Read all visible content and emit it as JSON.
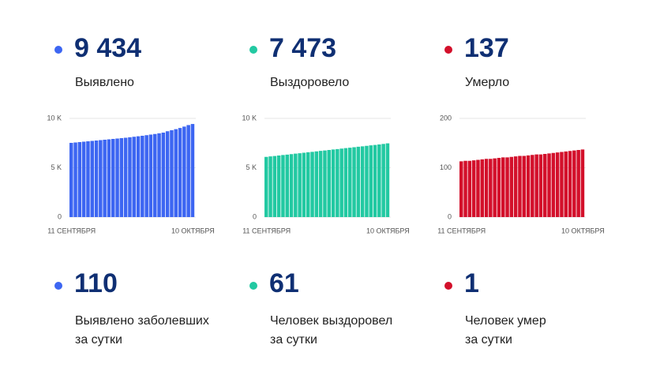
{
  "stats": [
    {
      "value": "9 434",
      "label": "Выявлено",
      "color": "#3d66f2"
    },
    {
      "value": "7 473",
      "label": "Выздоровело",
      "color": "#22c9a2"
    },
    {
      "value": "137",
      "label": "Умерло",
      "color": "#d3102b"
    }
  ],
  "daily": [
    {
      "value": "110",
      "lines": [
        "Выявлено заболевших",
        "за сутки"
      ],
      "color": "#3d66f2"
    },
    {
      "value": "61",
      "lines": [
        "Человек выздоровел",
        "за сутки"
      ],
      "color": "#22c9a2"
    },
    {
      "value": "1",
      "lines": [
        "Человек умер",
        "за сутки"
      ],
      "color": "#d3102b"
    }
  ],
  "chart_data": [
    {
      "type": "bar",
      "color": "#3d66f2",
      "categories": [
        "11 СЕНТЯБРЯ",
        null,
        null,
        null,
        null,
        null,
        null,
        null,
        null,
        null,
        null,
        null,
        null,
        null,
        null,
        null,
        null,
        null,
        null,
        null,
        null,
        null,
        null,
        null,
        null,
        null,
        null,
        null,
        null,
        "10 ОКТЯБРЯ"
      ],
      "values": [
        7520,
        7560,
        7600,
        7640,
        7680,
        7720,
        7760,
        7800,
        7840,
        7880,
        7920,
        7960,
        8000,
        8040,
        8090,
        8140,
        8190,
        8240,
        8300,
        8360,
        8420,
        8490,
        8560,
        8700,
        8800,
        8910,
        9030,
        9170,
        9324,
        9434
      ],
      "ylim": [
        0,
        10000
      ],
      "yticks": [
        0,
        {
          "value": 5000,
          "label": "5 K"
        },
        {
          "value": 10000,
          "label": "10 K"
        }
      ],
      "grid": true
    },
    {
      "type": "bar",
      "color": "#22c9a2",
      "categories": [
        "11 СЕНТЯБРЯ",
        null,
        null,
        null,
        null,
        null,
        null,
        null,
        null,
        null,
        null,
        null,
        null,
        null,
        null,
        null,
        null,
        null,
        null,
        null,
        null,
        null,
        null,
        null,
        null,
        null,
        null,
        null,
        null,
        "10 ОКТЯБРЯ"
      ],
      "values": [
        6100,
        6150,
        6190,
        6240,
        6290,
        6330,
        6380,
        6430,
        6470,
        6520,
        6570,
        6610,
        6660,
        6710,
        6750,
        6800,
        6850,
        6890,
        6940,
        6990,
        7030,
        7080,
        7130,
        7170,
        7220,
        7270,
        7310,
        7360,
        7412,
        7473
      ],
      "ylim": [
        0,
        10000
      ],
      "yticks": [
        0,
        {
          "value": 5000,
          "label": "5 K"
        },
        {
          "value": 10000,
          "label": "10 K"
        }
      ],
      "grid": true
    },
    {
      "type": "bar",
      "color": "#d3102b",
      "categories": [
        "11 СЕНТЯБРЯ",
        null,
        null,
        null,
        null,
        null,
        null,
        null,
        null,
        null,
        null,
        null,
        null,
        null,
        null,
        null,
        null,
        null,
        null,
        null,
        null,
        null,
        null,
        null,
        null,
        null,
        null,
        null,
        null,
        "10 ОКТЯБРЯ"
      ],
      "values": [
        113,
        114,
        114,
        115,
        116,
        117,
        118,
        118,
        119,
        120,
        121,
        121,
        122,
        123,
        124,
        124,
        125,
        126,
        127,
        127,
        128,
        129,
        130,
        131,
        132,
        133,
        134,
        135,
        136,
        137
      ],
      "ylim": [
        0,
        200
      ],
      "yticks": [
        0,
        100,
        200
      ],
      "grid": true
    }
  ]
}
